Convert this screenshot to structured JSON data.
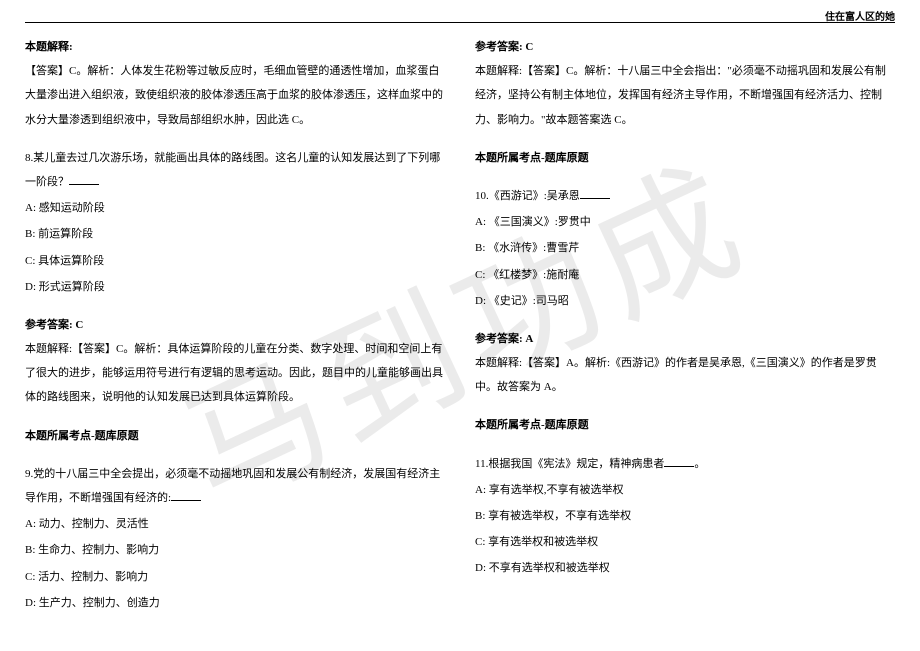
{
  "header": {
    "right_text": "住在富人区的她"
  },
  "watermark": "马到功成",
  "left_column": {
    "block1": {
      "title": "本题解释:",
      "text": "【答案】C。解析：人体发生花粉等过敏反应时，毛细血管壁的通透性增加，血浆蛋白大量渗出进入组织液，致使组织液的胶体渗透压高于血浆的胶体渗透压，这样血浆中的水分大量渗透到组织液中，导致局部组织水肿，因此选 C。"
    },
    "q8": {
      "stem": "8.某儿童去过几次游乐场，就能画出具体的路线图。这名儿童的认知发展达到了下列哪一阶段？",
      "a": "A: 感知运动阶段",
      "b": "B: 前运算阶段",
      "c": "C: 具体运算阶段",
      "d": "D: 形式运算阶段"
    },
    "q8_ans": {
      "ref": "参考答案: C",
      "expl": "本题解释:【答案】C。解析：具体运算阶段的儿童在分类、数字处理、时间和空间上有了很大的进步，能够运用符号进行有逻辑的思考运动。因此，题目中的儿童能够画出具体的路线图来，说明他的认知发展已达到具体运算阶段。",
      "topic": "本题所属考点-题库原题"
    },
    "q9": {
      "stem": "9.党的十八届三中全会提出，必须毫不动摇地巩固和发展公有制经济，发展国有经济主导作用，不断增强国有经济的:",
      "a": "A: 动力、控制力、灵活性",
      "b": "B: 生命力、控制力、影响力",
      "c": "C: 活力、控制力、影响力",
      "d": "D: 生产力、控制力、创造力"
    }
  },
  "right_column": {
    "q9_ans": {
      "ref": "参考答案: C",
      "expl": "本题解释:【答案】C。解析：十八届三中全会指出：\"必须毫不动摇巩固和发展公有制经济，坚持公有制主体地位，发挥国有经济主导作用，不断增强国有经济活力、控制力、影响力。\"故本题答案选 C。",
      "topic": "本题所属考点-题库原题"
    },
    "q10": {
      "stem": "10.《西游记》:吴承恩",
      "a": "A: 《三国演义》:罗贯中",
      "b": "B: 《水浒传》:曹雪芹",
      "c": "C: 《红楼梦》:施耐庵",
      "d": "D: 《史记》:司马昭"
    },
    "q10_ans": {
      "ref": "参考答案: A",
      "expl": "本题解释:【答案】A。解析:《西游记》的作者是吴承恩,《三国演义》的作者是罗贯中。故答案为 A。",
      "topic": "本题所属考点-题库原题"
    },
    "q11": {
      "stem": "11.根据我国《宪法》规定，精神病患者",
      "a": "A: 享有选举权,不享有被选举权",
      "b": "B: 享有被选举权，不享有选举权",
      "c": "C: 享有选举权和被选举权",
      "d": "D: 不享有选举权和被选举权"
    }
  }
}
